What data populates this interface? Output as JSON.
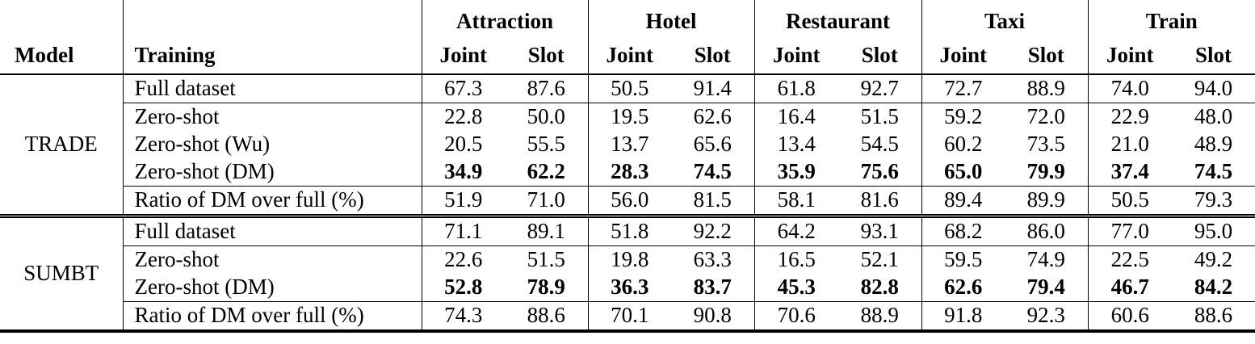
{
  "table": {
    "model_header": "Model",
    "training_header": "Training",
    "groups": [
      {
        "label": "Attraction",
        "joint": "Joint",
        "slot": "Slot"
      },
      {
        "label": "Hotel",
        "joint": "Joint",
        "slot": "Slot"
      },
      {
        "label": "Restaurant",
        "joint": "Joint",
        "slot": "Slot"
      },
      {
        "label": "Taxi",
        "joint": "Joint",
        "slot": "Slot"
      },
      {
        "label": "Train",
        "joint": "Joint",
        "slot": "Slot"
      }
    ],
    "sections": [
      {
        "model": "TRADE",
        "rows": [
          {
            "training": "Full dataset",
            "bold": false,
            "values": [
              "67.3",
              "87.6",
              "50.5",
              "91.4",
              "61.8",
              "92.7",
              "72.7",
              "88.9",
              "74.0",
              "94.0"
            ]
          },
          {
            "training": "Zero-shot",
            "bold": false,
            "values": [
              "22.8",
              "50.0",
              "19.5",
              "62.6",
              "16.4",
              "51.5",
              "59.2",
              "72.0",
              "22.9",
              "48.0"
            ]
          },
          {
            "training": "Zero-shot (Wu)",
            "bold": false,
            "values": [
              "20.5",
              "55.5",
              "13.7",
              "65.6",
              "13.4",
              "54.5",
              "60.2",
              "73.5",
              "21.0",
              "48.9"
            ]
          },
          {
            "training": "Zero-shot (DM)",
            "bold": true,
            "values": [
              "34.9",
              "62.2",
              "28.3",
              "74.5",
              "35.9",
              "75.6",
              "65.0",
              "79.9",
              "37.4",
              "74.5"
            ]
          },
          {
            "training": "Ratio of DM over full (%)",
            "bold": false,
            "values": [
              "51.9",
              "71.0",
              "56.0",
              "81.5",
              "58.1",
              "81.6",
              "89.4",
              "89.9",
              "50.5",
              "79.3"
            ]
          }
        ]
      },
      {
        "model": "SUMBT",
        "rows": [
          {
            "training": "Full dataset",
            "bold": false,
            "values": [
              "71.1",
              "89.1",
              "51.8",
              "92.2",
              "64.2",
              "93.1",
              "68.2",
              "86.0",
              "77.0",
              "95.0"
            ]
          },
          {
            "training": "Zero-shot",
            "bold": false,
            "values": [
              "22.6",
              "51.5",
              "19.8",
              "63.3",
              "16.5",
              "52.1",
              "59.5",
              "74.9",
              "22.5",
              "49.2"
            ]
          },
          {
            "training": "Zero-shot (DM)",
            "bold": true,
            "values": [
              "52.8",
              "78.9",
              "36.3",
              "83.7",
              "45.3",
              "82.8",
              "62.6",
              "79.4",
              "46.7",
              "84.2"
            ]
          },
          {
            "training": "Ratio of DM over full (%)",
            "bold": false,
            "values": [
              "74.3",
              "88.6",
              "70.1",
              "90.8",
              "70.6",
              "88.9",
              "91.8",
              "92.3",
              "60.6",
              "88.6"
            ]
          }
        ]
      }
    ]
  }
}
